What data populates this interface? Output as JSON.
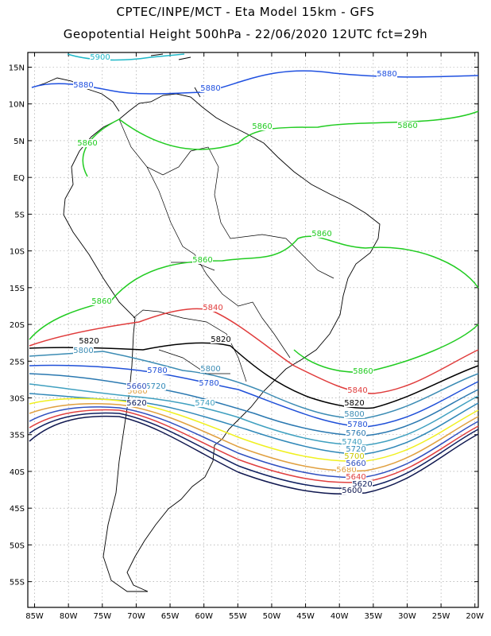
{
  "header": {
    "line1": "CPTEC/INPE/MCT -  Eta Model 15km - GFS",
    "line2": "Geopotential Height 500hPa - 22/06/2020 12UTC fct=29h"
  },
  "axes": {
    "lat_labels": [
      "15N",
      "10N",
      "5N",
      "EQ",
      "5S",
      "10S",
      "15S",
      "20S",
      "25S",
      "30S",
      "35S",
      "40S",
      "45S",
      "50S",
      "55S"
    ],
    "lat_values": [
      15,
      10,
      5,
      0,
      -5,
      -10,
      -15,
      -20,
      -25,
      -30,
      -35,
      -40,
      -45,
      -50,
      -55
    ],
    "lon_labels": [
      "85W",
      "80W",
      "75W",
      "70W",
      "65W",
      "60W",
      "55W",
      "50W",
      "45W",
      "40W",
      "35W",
      "30W",
      "25W",
      "20W"
    ],
    "lon_values": [
      -85,
      -80,
      -75,
      -70,
      -65,
      -60,
      -55,
      -50,
      -45,
      -40,
      -35,
      -30,
      -25,
      -20
    ],
    "lon_range": [
      -86,
      -19.5
    ],
    "lat_range": [
      -58.5,
      17
    ],
    "grid": "dotted"
  },
  "contours": [
    {
      "value": 5900,
      "label": "5900",
      "color": "#1fb8c8"
    },
    {
      "value": 5880,
      "label": "5880",
      "color": "#1f50e0"
    },
    {
      "value": 5860,
      "label": "5860",
      "color": "#22cc22"
    },
    {
      "value": 5840,
      "label": "5840",
      "color": "#e03c3c"
    },
    {
      "value": 5820,
      "label": "5820",
      "color": "#000000"
    },
    {
      "value": 5800,
      "label": "5800",
      "color": "#3c8cb4"
    },
    {
      "value": 5780,
      "label": "5780",
      "color": "#2050d8"
    },
    {
      "value": 5760,
      "label": "5760",
      "color": "#2a78b0"
    },
    {
      "value": 5740,
      "label": "5740",
      "color": "#40a0c0"
    },
    {
      "value": 5720,
      "label": "5720",
      "color": "#3088b8"
    },
    {
      "value": 5700,
      "label": "5700",
      "color": "#f0f020"
    },
    {
      "value": 5680,
      "label": "5680",
      "color": "#e0a040"
    },
    {
      "value": 5660,
      "label": "5660",
      "color": "#3050c0"
    },
    {
      "value": 5640,
      "label": "5640",
      "color": "#e04040"
    },
    {
      "value": 5620,
      "label": "5620",
      "color": "#102060"
    },
    {
      "value": 5600,
      "label": "5600",
      "color": "#101850"
    }
  ]
}
